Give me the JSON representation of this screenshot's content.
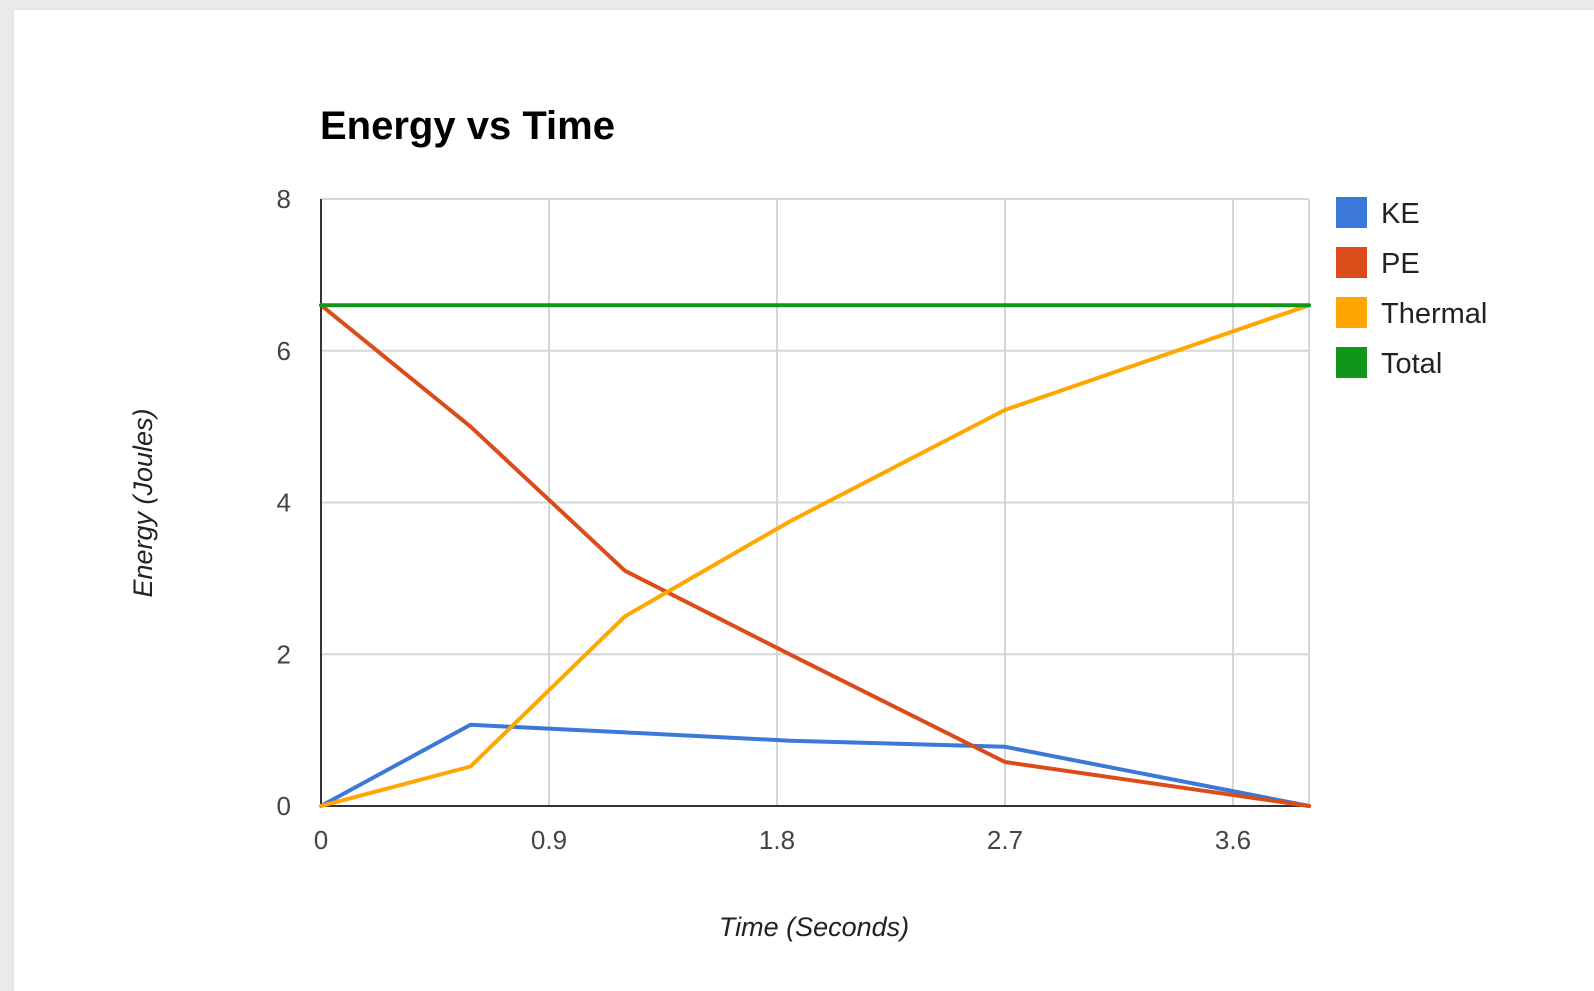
{
  "chart_data": {
    "type": "line",
    "title": "Energy vs Time",
    "xlabel": "Time (Seconds)",
    "ylabel": "Energy (Joules)",
    "xlim": [
      0,
      3.9
    ],
    "ylim": [
      0,
      8
    ],
    "x_ticks": [
      "0",
      "0.9",
      "1.8",
      "2.7",
      "3.6"
    ],
    "y_ticks": [
      "0",
      "2",
      "4",
      "6",
      "8"
    ],
    "grid": true,
    "legend_position": "right",
    "series": [
      {
        "name": "KE",
        "color": "#3c78d8",
        "points": [
          [
            0,
            0
          ],
          [
            0.59,
            1.07
          ],
          [
            1.2,
            0.97
          ],
          [
            1.85,
            0.86
          ],
          [
            2.7,
            0.78
          ],
          [
            3.9,
            0
          ]
        ]
      },
      {
        "name": "PE",
        "color": "#dc4c1a",
        "points": [
          [
            0,
            6.6
          ],
          [
            0.59,
            5.0
          ],
          [
            1.2,
            3.1
          ],
          [
            1.85,
            2.0
          ],
          [
            2.7,
            0.58
          ],
          [
            3.9,
            0
          ]
        ]
      },
      {
        "name": "Thermal",
        "color": "#ffa600",
        "points": [
          [
            0,
            0
          ],
          [
            0.59,
            0.52
          ],
          [
            1.2,
            2.5
          ],
          [
            1.85,
            3.75
          ],
          [
            2.7,
            5.22
          ],
          [
            3.9,
            6.6
          ]
        ]
      },
      {
        "name": "Total",
        "color": "#109618",
        "points": [
          [
            0,
            6.6
          ],
          [
            0.59,
            6.6
          ],
          [
            1.2,
            6.6
          ],
          [
            1.85,
            6.6
          ],
          [
            2.7,
            6.6
          ],
          [
            3.9,
            6.6
          ]
        ]
      }
    ]
  }
}
